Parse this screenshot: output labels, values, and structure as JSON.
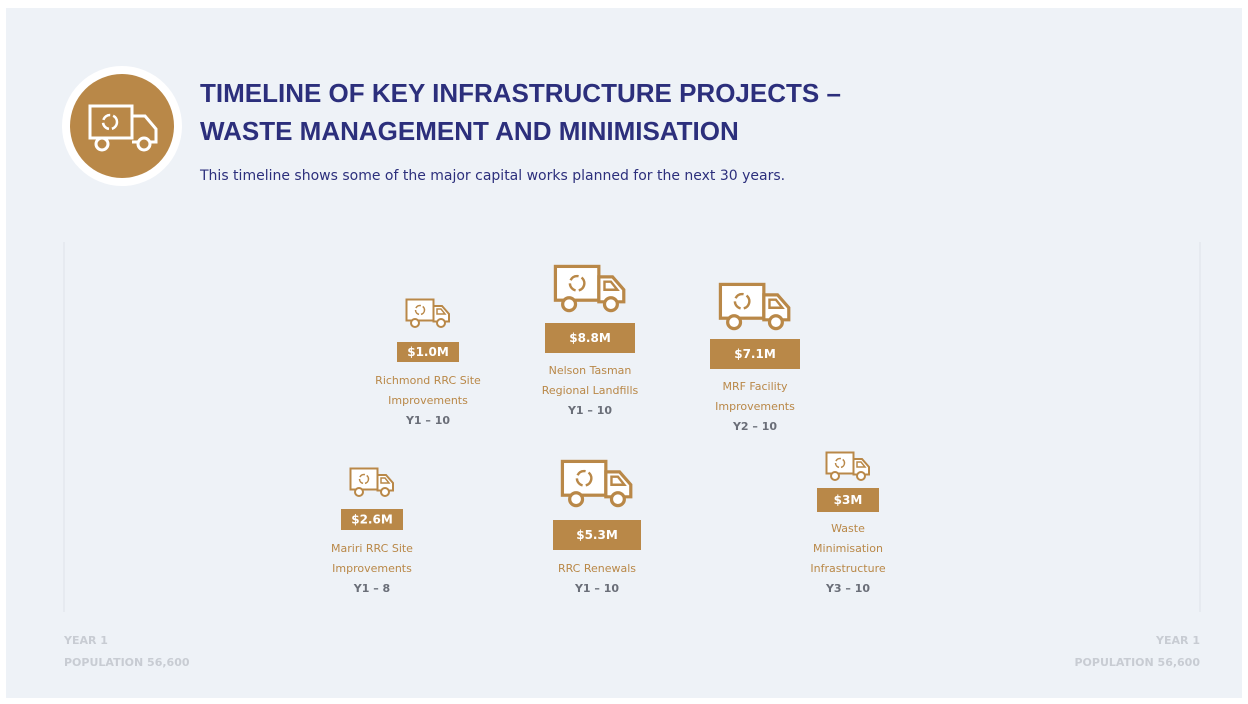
{
  "header": {
    "title": [
      "TIMELINE OF KEY INFRASTRUCTURE PROJECTS –",
      "WASTE MANAGEMENT AND MINIMISATION"
    ],
    "subtitle": "This timeline shows some of the major capital works planned for the next 30 years."
  },
  "projects": [
    {
      "cost": "$1.0M",
      "name": [
        "Richmond RRC Site",
        "Improvements"
      ],
      "years": "Y1 – 10"
    },
    {
      "cost": "$8.8M",
      "name": [
        "Nelson Tasman",
        "Regional Landfills"
      ],
      "years": "Y1 – 10"
    },
    {
      "cost": "$7.1M",
      "name": [
        "MRF Facility",
        "Improvements"
      ],
      "years": "Y2 – 10"
    },
    {
      "cost": "$2.6M",
      "name": [
        "Mariri RRC Site",
        "Improvements"
      ],
      "years": "Y1 – 8"
    },
    {
      "cost": "$5.3M",
      "name": [
        "RRC Renewals"
      ],
      "years": "Y1 – 10"
    },
    {
      "cost": "$3M",
      "name": [
        "Waste",
        "Minimisation",
        "Infrastructure"
      ],
      "years": "Y3 – 10"
    }
  ],
  "footer": {
    "left": [
      "YEAR 1",
      "POPULATION 56,600"
    ],
    "right": [
      "YEAR 1",
      "POPULATION 56,600"
    ]
  }
}
